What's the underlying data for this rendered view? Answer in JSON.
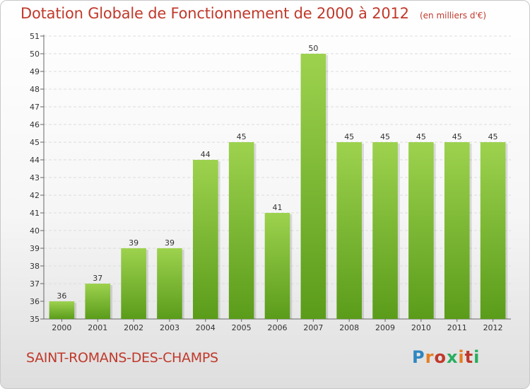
{
  "chart_data": {
    "type": "bar",
    "title": "Dotation Globale de Fonctionnement de 2000 à 2012",
    "subtitle": "(en milliers d'€)",
    "categories": [
      "2000",
      "2001",
      "2002",
      "2003",
      "2004",
      "2005",
      "2006",
      "2007",
      "2008",
      "2009",
      "2010",
      "2011",
      "2012"
    ],
    "values": [
      36,
      37,
      39,
      39,
      44,
      45,
      41,
      50,
      45,
      45,
      45,
      45,
      45
    ],
    "ylim": [
      35,
      51
    ],
    "yticks": [
      35,
      36,
      37,
      38,
      39,
      40,
      41,
      42,
      43,
      44,
      45,
      46,
      47,
      48,
      49,
      50,
      51
    ],
    "xlabel": "",
    "ylabel": "",
    "grid": true,
    "colors": {
      "bar_top": "#9dd24e",
      "bar_bottom": "#5a9c1a",
      "text": "#c0392b"
    }
  },
  "footer": {
    "commune": "SAINT-ROMANS-DES-CHAMPS",
    "logo_text": "Proxiti"
  }
}
